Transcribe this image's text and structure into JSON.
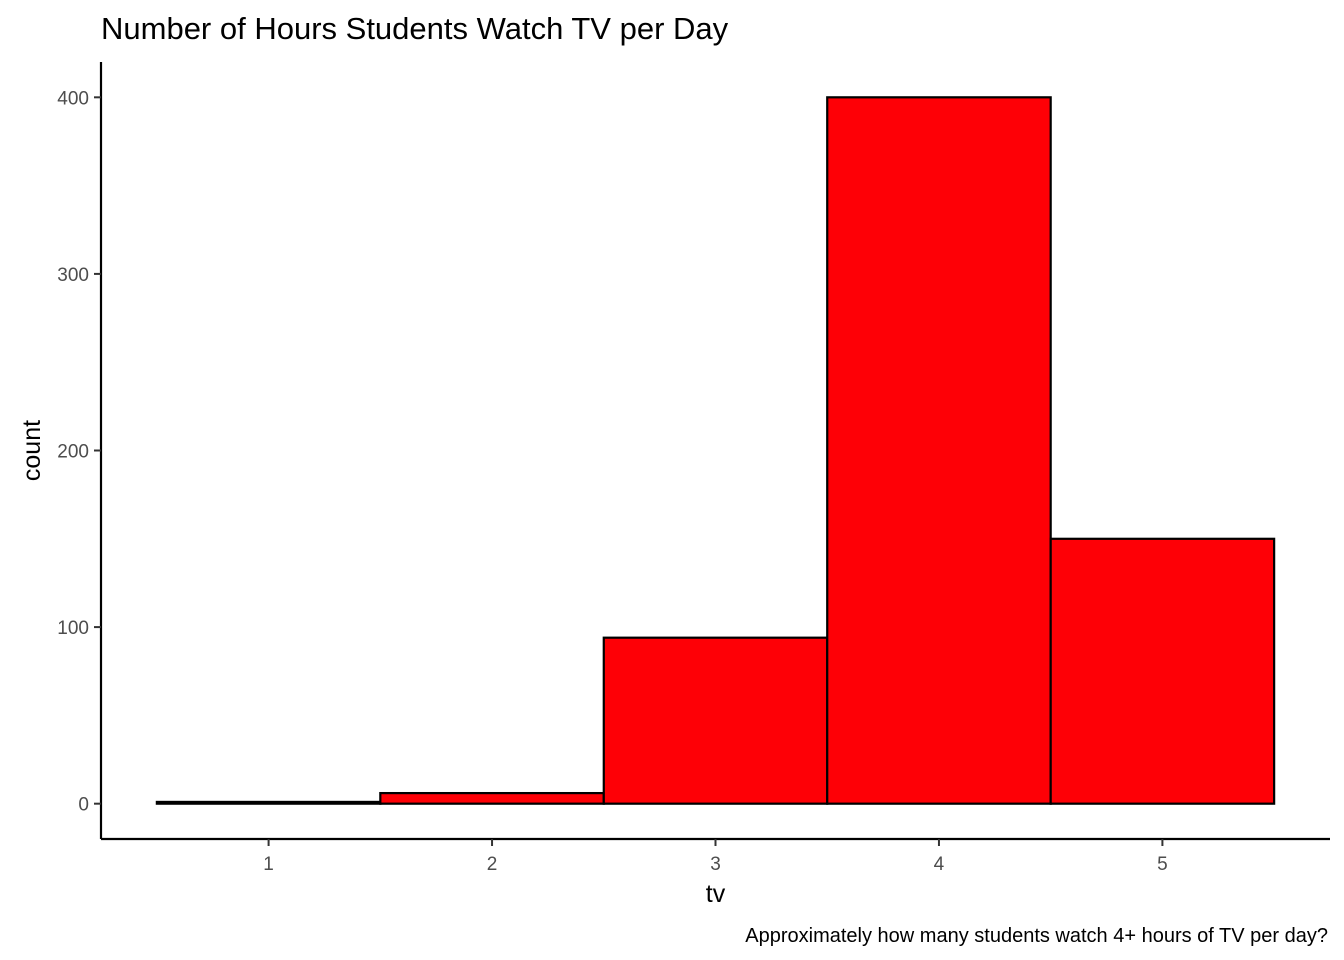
{
  "chart_data": {
    "type": "bar",
    "title": "Number of Hours Students Watch TV per Day",
    "xlabel": "tv",
    "ylabel": "count",
    "caption": "Approximately how many students watch 4+ hours of TV per day?",
    "categories": [
      1,
      2,
      3,
      4,
      5
    ],
    "values": [
      1,
      6,
      94,
      400,
      150
    ],
    "bin_width": 1,
    "xlim": [
      0.25,
      5.75
    ],
    "ylim": [
      -20,
      420
    ],
    "x_ticks": [
      1,
      2,
      3,
      4,
      5
    ],
    "y_ticks": [
      0,
      100,
      200,
      300,
      400
    ],
    "bar_fill": "#fe0006",
    "bar_outline": "#000000",
    "grid": false,
    "legend": "none"
  }
}
